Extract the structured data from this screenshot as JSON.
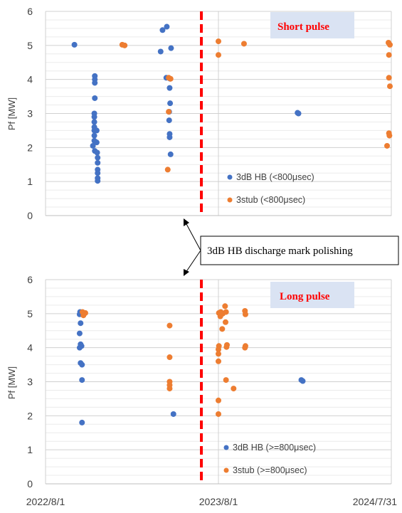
{
  "chart_data": [
    {
      "type": "scatter",
      "pulse_label": "Short pulse",
      "ylabel": "Pf [MW]",
      "ylim": [
        0,
        6
      ],
      "xlim": [
        "2022/8/1",
        "2024/7/31"
      ],
      "ytick_labels": [
        "0",
        "1",
        "2",
        "3",
        "4",
        "5",
        "6"
      ],
      "grid": true,
      "legend_position": "bottom-right",
      "marker_line_date": "2023/6/26",
      "series": [
        {
          "name": "3dB HB (<800μsec)",
          "color": "#4472c4",
          "points": [
            {
              "x": "2022/10/1",
              "y": 5.02
            },
            {
              "x": "2022/11/13",
              "y": 4.1
            },
            {
              "x": "2022/11/13",
              "y": 4.0
            },
            {
              "x": "2022/11/13",
              "y": 3.9
            },
            {
              "x": "2022/11/13",
              "y": 3.45
            },
            {
              "x": "2022/11/12",
              "y": 3.0
            },
            {
              "x": "2022/11/12",
              "y": 2.9
            },
            {
              "x": "2022/11/12",
              "y": 2.75
            },
            {
              "x": "2022/11/12",
              "y": 2.6
            },
            {
              "x": "2022/11/12",
              "y": 2.5
            },
            {
              "x": "2022/11/12",
              "y": 2.35
            },
            {
              "x": "2022/11/12",
              "y": 2.2
            },
            {
              "x": "2022/11/9",
              "y": 2.05
            },
            {
              "x": "2022/11/13",
              "y": 1.9
            },
            {
              "x": "2022/11/17",
              "y": 2.5
            },
            {
              "x": "2022/11/17",
              "y": 2.15
            },
            {
              "x": "2022/11/18",
              "y": 1.85
            },
            {
              "x": "2022/11/19",
              "y": 1.7
            },
            {
              "x": "2022/11/19",
              "y": 1.55
            },
            {
              "x": "2022/11/19",
              "y": 1.35
            },
            {
              "x": "2022/11/19",
              "y": 1.25
            },
            {
              "x": "2022/11/19",
              "y": 1.1
            },
            {
              "x": "2022/11/19",
              "y": 1.02
            },
            {
              "x": "2023/4/5",
              "y": 5.45
            },
            {
              "x": "2023/4/14",
              "y": 5.55
            },
            {
              "x": "2023/4/1",
              "y": 4.82
            },
            {
              "x": "2023/4/23",
              "y": 4.92
            },
            {
              "x": "2023/4/13",
              "y": 4.05
            },
            {
              "x": "2023/4/21",
              "y": 4.02
            },
            {
              "x": "2023/4/20",
              "y": 3.75
            },
            {
              "x": "2023/4/21",
              "y": 3.3
            },
            {
              "x": "2023/4/19",
              "y": 3.05
            },
            {
              "x": "2023/4/19",
              "y": 2.8
            },
            {
              "x": "2023/4/20",
              "y": 2.4
            },
            {
              "x": "2023/4/20",
              "y": 2.3
            },
            {
              "x": "2023/4/22",
              "y": 1.8
            },
            {
              "x": "2024/1/15",
              "y": 3.02
            },
            {
              "x": "2024/1/17",
              "y": 3.0
            }
          ]
        },
        {
          "name": "3stub (<800μsec)",
          "color": "#ed7d31",
          "points": [
            {
              "x": "2023/1/10",
              "y": 5.02
            },
            {
              "x": "2023/1/15",
              "y": 5.0
            },
            {
              "x": "2023/4/18",
              "y": 4.05
            },
            {
              "x": "2023/4/22",
              "y": 4.02
            },
            {
              "x": "2023/4/18",
              "y": 3.05
            },
            {
              "x": "2023/4/16",
              "y": 1.35
            },
            {
              "x": "2023/8/1",
              "y": 5.12
            },
            {
              "x": "2023/8/1",
              "y": 4.72
            },
            {
              "x": "2023/9/24",
              "y": 5.05
            },
            {
              "x": "2024/7/25",
              "y": 5.08
            },
            {
              "x": "2024/7/28",
              "y": 5.02
            },
            {
              "x": "2024/7/26",
              "y": 4.72
            },
            {
              "x": "2024/7/26",
              "y": 4.05
            },
            {
              "x": "2024/7/28",
              "y": 3.8
            },
            {
              "x": "2024/7/26",
              "y": 2.42
            },
            {
              "x": "2024/7/27",
              "y": 2.35
            },
            {
              "x": "2024/7/22",
              "y": 2.05
            }
          ]
        }
      ]
    },
    {
      "type": "scatter",
      "pulse_label": "Long pulse",
      "ylabel": "Pf [MW]",
      "ylim": [
        0,
        6
      ],
      "xlim": [
        "2022/8/1",
        "2024/7/31"
      ],
      "ytick_labels": [
        "0",
        "1",
        "2",
        "3",
        "4",
        "5",
        "6"
      ],
      "xtick_labels": [
        "2022/8/1",
        "2023/8/1",
        "2024/7/31"
      ],
      "grid": true,
      "legend_position": "bottom-right",
      "marker_line_date": "2023/6/26",
      "series": [
        {
          "name": "3dB HB (>=800μsec)",
          "color": "#4472c4",
          "points": [
            {
              "x": "2022/10/13",
              "y": 5.05
            },
            {
              "x": "2022/10/15",
              "y": 5.02
            },
            {
              "x": "2022/10/12",
              "y": 4.98
            },
            {
              "x": "2022/10/14",
              "y": 4.72
            },
            {
              "x": "2022/10/12",
              "y": 4.42
            },
            {
              "x": "2022/10/14",
              "y": 4.1
            },
            {
              "x": "2022/10/16",
              "y": 4.05
            },
            {
              "x": "2022/10/12",
              "y": 4.0
            },
            {
              "x": "2022/10/14",
              "y": 3.55
            },
            {
              "x": "2022/10/17",
              "y": 3.5
            },
            {
              "x": "2022/10/17",
              "y": 3.05
            },
            {
              "x": "2022/10/17",
              "y": 1.8
            },
            {
              "x": "2023/4/28",
              "y": 2.05
            },
            {
              "x": "2024/1/23",
              "y": 3.05
            },
            {
              "x": "2024/1/26",
              "y": 3.02
            }
          ]
        },
        {
          "name": "3stub (>=800μsec)",
          "color": "#ed7d31",
          "points": [
            {
              "x": "2022/10/18",
              "y": 5.05
            },
            {
              "x": "2022/10/24",
              "y": 5.02
            },
            {
              "x": "2022/10/20",
              "y": 4.95
            },
            {
              "x": "2023/4/20",
              "y": 4.65
            },
            {
              "x": "2023/4/20",
              "y": 3.72
            },
            {
              "x": "2023/4/20",
              "y": 3.0
            },
            {
              "x": "2023/4/20",
              "y": 2.9
            },
            {
              "x": "2023/4/20",
              "y": 2.8
            },
            {
              "x": "2023/8/2",
              "y": 5.02
            },
            {
              "x": "2023/8/6",
              "y": 5.05
            },
            {
              "x": "2023/8/10",
              "y": 5.0
            },
            {
              "x": "2023/8/17",
              "y": 5.05
            },
            {
              "x": "2023/8/5",
              "y": 4.92
            },
            {
              "x": "2023/8/9",
              "y": 4.55
            },
            {
              "x": "2023/8/16",
              "y": 4.75
            },
            {
              "x": "2023/8/15",
              "y": 5.22
            },
            {
              "x": "2023/8/2",
              "y": 4.05
            },
            {
              "x": "2023/8/1",
              "y": 3.95
            },
            {
              "x": "2023/8/1",
              "y": 3.82
            },
            {
              "x": "2023/8/1",
              "y": 3.6
            },
            {
              "x": "2023/8/1",
              "y": 2.45
            },
            {
              "x": "2023/8/1",
              "y": 2.05
            },
            {
              "x": "2023/8/18",
              "y": 4.02
            },
            {
              "x": "2023/8/19",
              "y": 4.08
            },
            {
              "x": "2023/8/17",
              "y": 3.05
            },
            {
              "x": "2023/9/2",
              "y": 2.8
            },
            {
              "x": "2023/9/26",
              "y": 5.08
            },
            {
              "x": "2023/9/27",
              "y": 4.98
            },
            {
              "x": "2023/9/27",
              "y": 4.05
            },
            {
              "x": "2023/9/26",
              "y": 4.0
            }
          ]
        }
      ]
    }
  ],
  "annotation": {
    "text": "3dB HB discharge mark polishing"
  }
}
